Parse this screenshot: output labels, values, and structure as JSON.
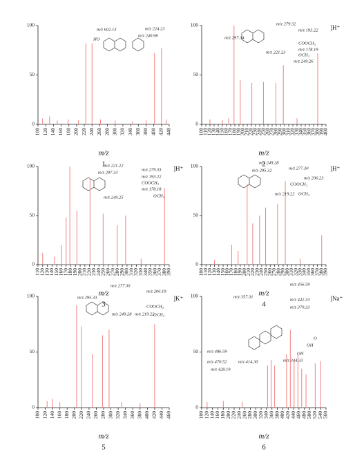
{
  "chart_data": [
    {
      "type": "bar",
      "number": "1",
      "x_label": "m/z",
      "color": "#f08080",
      "x": [
        112,
        130,
        150,
        178,
        205,
        224,
        240,
        262,
        300,
        345,
        380,
        402,
        420,
        432
      ],
      "values": [
        6,
        8,
        4,
        5,
        4,
        82,
        82,
        5,
        4,
        3,
        4,
        72,
        77,
        5
      ],
      "xlim": [
        100,
        440
      ],
      "xticks": [
        100,
        120,
        140,
        160,
        180,
        200,
        220,
        240,
        260,
        280,
        300,
        320,
        340,
        360,
        380,
        400,
        420,
        440
      ],
      "ylim": [
        0,
        100
      ],
      "yticks": [
        0,
        50,
        100
      ],
      "annotations": [
        "m/z 602.13",
        "m/z 224.23",
        "m/z 240.98",
        "HO"
      ]
    },
    {
      "type": "bar",
      "number": "2",
      "x_label": "m/z",
      "ion": "]H⁺",
      "color": "#f08080",
      "x": [
        120,
        150,
        165,
        178,
        193,
        221,
        249,
        279,
        297,
        330,
        380
      ],
      "values": [
        5,
        4,
        6,
        100,
        45,
        42,
        43,
        42,
        60,
        6,
        72
      ],
      "xlim": [
        100,
        400
      ],
      "xticks": [
        100,
        110,
        120,
        130,
        140,
        150,
        160,
        170,
        180,
        190,
        200,
        210,
        220,
        230,
        240,
        250,
        260,
        270,
        280,
        290,
        300,
        310,
        320,
        330,
        340,
        350,
        360,
        370,
        380,
        390,
        400
      ],
      "ylim": [
        0,
        100
      ],
      "yticks": [
        0,
        50,
        100
      ],
      "annotations": [
        "m/z 297.34",
        "m/z 279.32",
        "m/z 193.22",
        "m/z 221.23",
        "COOCH₃",
        "m/z 178.19",
        "OCH₃",
        "m/z 249.26"
      ]
    },
    {
      "type": "bar",
      "number": "3",
      "x_label": "m/z",
      "ion": "]H⁺",
      "color": "#f08080",
      "x": [
        120,
        145,
        160,
        170,
        178,
        193,
        221,
        249,
        279,
        297,
        330,
        380
      ],
      "values": [
        12,
        8,
        20,
        48,
        100,
        55,
        88,
        52,
        40,
        50,
        6,
        78
      ],
      "xlim": [
        110,
        390
      ],
      "xticks": [
        110,
        120,
        130,
        140,
        150,
        160,
        170,
        180,
        190,
        200,
        210,
        220,
        230,
        240,
        250,
        260,
        270,
        280,
        290,
        300,
        310,
        320,
        330,
        340,
        350,
        360,
        370,
        380,
        390
      ],
      "ylim": [
        0,
        100
      ],
      "yticks": [
        0,
        50,
        100
      ],
      "annotations": [
        "m/z 221.22",
        "m/z 297.33",
        "m/z 279.33",
        "m/z 193.22",
        "COOCH₃",
        "m/z 178.18",
        "m/z 249.25",
        "OCH₃"
      ]
    },
    {
      "type": "bar",
      "number": "4",
      "x_label": "m/z",
      "ion": "]H⁺",
      "color": "#f08080",
      "x": [
        130,
        170,
        185,
        206,
        219,
        235,
        249,
        277,
        295,
        330,
        380
      ],
      "values": [
        5,
        20,
        14,
        82,
        42,
        50,
        58,
        62,
        85,
        6,
        30
      ],
      "xlim": [
        100,
        390
      ],
      "xticks": [
        100,
        110,
        120,
        130,
        140,
        150,
        160,
        170,
        180,
        190,
        200,
        210,
        220,
        230,
        240,
        250,
        260,
        270,
        280,
        290,
        300,
        310,
        320,
        330,
        340,
        350,
        360,
        370,
        380,
        390
      ],
      "ylim": [
        0,
        100
      ],
      "yticks": [
        0,
        50,
        100
      ],
      "annotations": [
        "m/z 249.28",
        "m/z 295.32",
        "m/z 277.30",
        "m/z 206.23",
        "COOCH₃",
        "m/z 219.22",
        "OCH₃"
      ]
    },
    {
      "type": "bar",
      "number": "5",
      "x_label": "m/z",
      "ion": "]K⁺",
      "color": "#f08080",
      "x": [
        125,
        140,
        160,
        206,
        219,
        249,
        277,
        295,
        330,
        380,
        420
      ],
      "values": [
        6,
        8,
        5,
        92,
        73,
        48,
        65,
        70,
        5,
        4,
        75
      ],
      "xlim": [
        100,
        460
      ],
      "xticks": [
        100,
        120,
        140,
        160,
        180,
        200,
        220,
        240,
        260,
        280,
        300,
        320,
        340,
        360,
        380,
        400,
        420,
        440,
        460
      ],
      "ylim": [
        0,
        100
      ],
      "yticks": [
        0,
        50,
        100
      ],
      "annotations": [
        "m/z 277.30",
        "m/z 206.19",
        "m/z 295.33",
        "COOCH₃",
        "m/z 249.28",
        "m/z 219.22",
        "OCH₃"
      ]
    },
    {
      "type": "bar",
      "number": "6",
      "x_label": "m/z",
      "ion": "]Na⁺",
      "color": "#f08080",
      "x": [
        120,
        180,
        250,
        344,
        357,
        370,
        414,
        428,
        442,
        456,
        470,
        486,
        520,
        540
      ],
      "values": [
        5,
        6,
        5,
        38,
        43,
        38,
        48,
        70,
        42,
        48,
        35,
        30,
        40,
        42
      ],
      "xlim": [
        100,
        560
      ],
      "xticks": [
        100,
        120,
        140,
        160,
        180,
        200,
        220,
        240,
        260,
        280,
        300,
        320,
        340,
        360,
        380,
        400,
        420,
        440,
        460,
        480,
        500,
        520,
        540,
        560
      ],
      "ylim": [
        0,
        100
      ],
      "yticks": [
        0,
        50,
        100
      ],
      "annotations": [
        "m/z 456.59",
        "m/z 357.31",
        "m/z 442.33",
        "m/z 370.33",
        "OH",
        "OH",
        "O",
        "m/z 344.33",
        "m/z 486.59",
        "m/z 470.52",
        "m/z 414.30",
        "m/z 428.19"
      ]
    }
  ]
}
